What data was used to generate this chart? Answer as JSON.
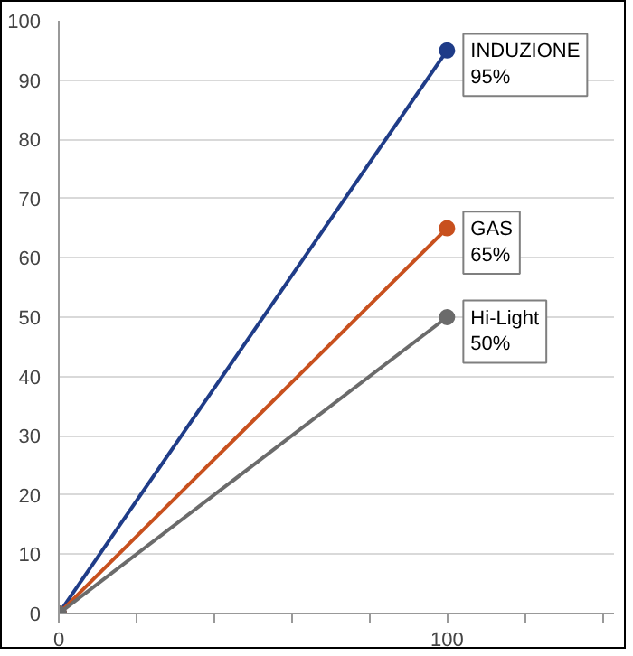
{
  "chart_data": {
    "type": "line",
    "x": [
      0,
      100
    ],
    "series": [
      {
        "name": "INDUZIONE",
        "color": "#1f3c88",
        "values": [
          0,
          95
        ],
        "value_labels": [
          null,
          "95%"
        ]
      },
      {
        "name": "GAS",
        "color": "#c8501e",
        "values": [
          0,
          65
        ],
        "value_labels": [
          null,
          "65%"
        ]
      },
      {
        "name": "Hi-Light",
        "color": "#6b6b6b",
        "values": [
          0,
          50
        ],
        "value_labels": [
          null,
          "50%"
        ]
      }
    ],
    "xlim": [
      0,
      143
    ],
    "xticks": [
      0,
      {
        "value": 20,
        "label": null
      },
      {
        "value": 40,
        "label": null
      },
      {
        "value": 60,
        "label": null
      },
      {
        "value": 80,
        "label": null
      },
      100,
      {
        "value": 120,
        "label": null
      },
      {
        "value": 140,
        "label": null
      }
    ],
    "ylim": [
      0,
      100
    ],
    "yticks": [
      0,
      10,
      20,
      30,
      40,
      50,
      60,
      70,
      80,
      90,
      100
    ],
    "grid": "y",
    "marker": "circle",
    "line_style": "solid"
  }
}
